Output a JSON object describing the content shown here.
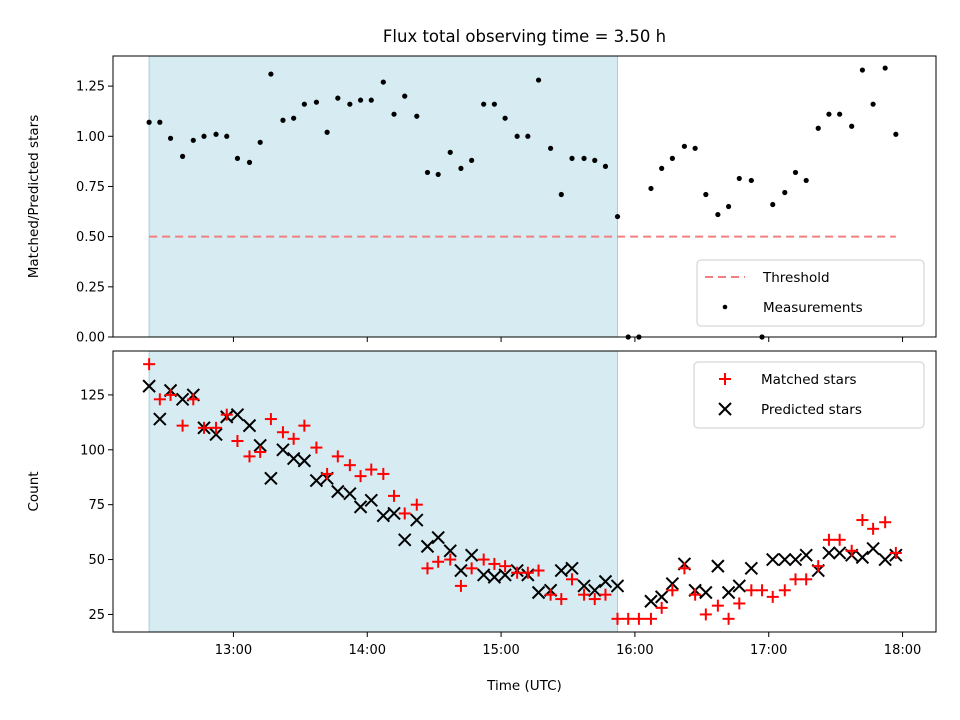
{
  "chart_data": [
    {
      "type": "scatter",
      "title": "Flux total observing time = 3.50 h",
      "xlabel": "",
      "ylabel": "Matched/Predicted stars",
      "xlim": [
        12.1,
        18.25
      ],
      "ylim": [
        0.0,
        1.4
      ],
      "yticks": [
        0.0,
        0.25,
        0.5,
        0.75,
        1.0,
        1.25
      ],
      "ytick_labels": [
        "0.00",
        "0.25",
        "0.50",
        "0.75",
        "1.00",
        "1.25"
      ],
      "xticks": [
        13,
        14,
        15,
        16,
        17,
        18
      ],
      "show_xtick_labels": false,
      "shaded_region": {
        "x": [
          12.37,
          15.87
        ],
        "color": "#add8e6"
      },
      "threshold": {
        "name": "Threshold",
        "value": 0.5,
        "x": [
          12.37,
          17.95
        ],
        "color": "#f08080",
        "style": "dashed"
      },
      "legend_position": "lower right",
      "series": [
        {
          "name": "Measurements",
          "color": "#000000",
          "marker": "dot",
          "points": [
            [
              12.37,
              1.07
            ],
            [
              12.45,
              1.07
            ],
            [
              12.53,
              0.99
            ],
            [
              12.62,
              0.9
            ],
            [
              12.7,
              0.98
            ],
            [
              12.78,
              1.0
            ],
            [
              12.87,
              1.01
            ],
            [
              12.95,
              1.0
            ],
            [
              13.03,
              0.89
            ],
            [
              13.12,
              0.87
            ],
            [
              13.2,
              0.97
            ],
            [
              13.28,
              1.31
            ],
            [
              13.37,
              1.08
            ],
            [
              13.45,
              1.09
            ],
            [
              13.53,
              1.16
            ],
            [
              13.62,
              1.17
            ],
            [
              13.7,
              1.02
            ],
            [
              13.78,
              1.19
            ],
            [
              13.87,
              1.16
            ],
            [
              13.95,
              1.18
            ],
            [
              14.03,
              1.18
            ],
            [
              14.12,
              1.27
            ],
            [
              14.2,
              1.11
            ],
            [
              14.28,
              1.2
            ],
            [
              14.37,
              1.1
            ],
            [
              14.45,
              0.82
            ],
            [
              14.53,
              0.81
            ],
            [
              14.62,
              0.92
            ],
            [
              14.7,
              0.84
            ],
            [
              14.78,
              0.88
            ],
            [
              14.87,
              1.16
            ],
            [
              14.95,
              1.16
            ],
            [
              15.03,
              1.09
            ],
            [
              15.12,
              1.0
            ],
            [
              15.2,
              1.0
            ],
            [
              15.28,
              1.28
            ],
            [
              15.37,
              0.94
            ],
            [
              15.45,
              0.71
            ],
            [
              15.53,
              0.89
            ],
            [
              15.62,
              0.89
            ],
            [
              15.7,
              0.88
            ],
            [
              15.78,
              0.85
            ],
            [
              15.87,
              0.6
            ],
            [
              15.95,
              0.0
            ],
            [
              16.03,
              0.0
            ],
            [
              16.12,
              0.74
            ],
            [
              16.2,
              0.84
            ],
            [
              16.28,
              0.89
            ],
            [
              16.37,
              0.95
            ],
            [
              16.45,
              0.94
            ],
            [
              16.53,
              0.71
            ],
            [
              16.62,
              0.61
            ],
            [
              16.7,
              0.65
            ],
            [
              16.78,
              0.79
            ],
            [
              16.87,
              0.78
            ],
            [
              16.95,
              0.0
            ],
            [
              17.03,
              0.66
            ],
            [
              17.12,
              0.72
            ],
            [
              17.2,
              0.82
            ],
            [
              17.28,
              0.78
            ],
            [
              17.37,
              1.04
            ],
            [
              17.45,
              1.11
            ],
            [
              17.53,
              1.11
            ],
            [
              17.62,
              1.05
            ],
            [
              17.7,
              1.33
            ],
            [
              17.78,
              1.16
            ],
            [
              17.87,
              1.34
            ],
            [
              17.95,
              1.01
            ]
          ]
        }
      ]
    },
    {
      "type": "scatter",
      "title": "",
      "xlabel": "Time (UTC)",
      "ylabel": "Count",
      "xlim": [
        12.1,
        18.25
      ],
      "ylim": [
        17,
        145
      ],
      "yticks": [
        25,
        50,
        75,
        100,
        125
      ],
      "ytick_labels": [
        "25",
        "50",
        "75",
        "100",
        "125"
      ],
      "xticks": [
        13,
        14,
        15,
        16,
        17,
        18
      ],
      "xtick_labels": [
        "13:00",
        "14:00",
        "15:00",
        "16:00",
        "17:00",
        "18:00"
      ],
      "shaded_region": {
        "x": [
          12.37,
          15.87
        ],
        "color": "#add8e6"
      },
      "legend_position": "upper right",
      "series": [
        {
          "name": "Matched stars",
          "color": "#ff0000",
          "marker": "plus",
          "points": [
            [
              12.37,
              139
            ],
            [
              12.45,
              123
            ],
            [
              12.53,
              125
            ],
            [
              12.62,
              111
            ],
            [
              12.7,
              123
            ],
            [
              12.78,
              110
            ],
            [
              12.87,
              110
            ],
            [
              12.95,
              116
            ],
            [
              13.03,
              104
            ],
            [
              13.12,
              97
            ],
            [
              13.2,
              99
            ],
            [
              13.28,
              114
            ],
            [
              13.37,
              108
            ],
            [
              13.45,
              105
            ],
            [
              13.53,
              111
            ],
            [
              13.62,
              101
            ],
            [
              13.7,
              89
            ],
            [
              13.78,
              97
            ],
            [
              13.87,
              93
            ],
            [
              13.95,
              88
            ],
            [
              14.03,
              91
            ],
            [
              14.12,
              89
            ],
            [
              14.2,
              79
            ],
            [
              14.28,
              71
            ],
            [
              14.37,
              75
            ],
            [
              14.45,
              46
            ],
            [
              14.53,
              49
            ],
            [
              14.62,
              50
            ],
            [
              14.7,
              38
            ],
            [
              14.78,
              46
            ],
            [
              14.87,
              50
            ],
            [
              14.95,
              48
            ],
            [
              15.03,
              47
            ],
            [
              15.12,
              44
            ],
            [
              15.2,
              44
            ],
            [
              15.28,
              45
            ],
            [
              15.37,
              34
            ],
            [
              15.45,
              32
            ],
            [
              15.53,
              41
            ],
            [
              15.62,
              34
            ],
            [
              15.7,
              32
            ],
            [
              15.78,
              34
            ],
            [
              15.87,
              23
            ],
            [
              15.95,
              23
            ],
            [
              16.03,
              23
            ],
            [
              16.12,
              23
            ],
            [
              16.2,
              28
            ],
            [
              16.28,
              36
            ],
            [
              16.37,
              46
            ],
            [
              16.45,
              34
            ],
            [
              16.53,
              25
            ],
            [
              16.62,
              29
            ],
            [
              16.7,
              23
            ],
            [
              16.78,
              30
            ],
            [
              16.87,
              36
            ],
            [
              16.95,
              36
            ],
            [
              17.03,
              33
            ],
            [
              17.12,
              36
            ],
            [
              17.2,
              41
            ],
            [
              17.28,
              41
            ],
            [
              17.37,
              47
            ],
            [
              17.45,
              59
            ],
            [
              17.53,
              59
            ],
            [
              17.62,
              54
            ],
            [
              17.7,
              68
            ],
            [
              17.78,
              64
            ],
            [
              17.87,
              67
            ],
            [
              17.95,
              53
            ]
          ]
        },
        {
          "name": "Predicted stars",
          "color": "#000000",
          "marker": "x",
          "points": [
            [
              12.37,
              129
            ],
            [
              12.45,
              114
            ],
            [
              12.53,
              127
            ],
            [
              12.62,
              123
            ],
            [
              12.7,
              125
            ],
            [
              12.78,
              110
            ],
            [
              12.87,
              107
            ],
            [
              12.95,
              115
            ],
            [
              13.03,
              116
            ],
            [
              13.12,
              111
            ],
            [
              13.2,
              102
            ],
            [
              13.28,
              87
            ],
            [
              13.37,
              100
            ],
            [
              13.45,
              96
            ],
            [
              13.53,
              95
            ],
            [
              13.62,
              86
            ],
            [
              13.7,
              87
            ],
            [
              13.78,
              81
            ],
            [
              13.87,
              80
            ],
            [
              13.95,
              74
            ],
            [
              14.03,
              77
            ],
            [
              14.12,
              70
            ],
            [
              14.2,
              71
            ],
            [
              14.28,
              59
            ],
            [
              14.37,
              68
            ],
            [
              14.45,
              56
            ],
            [
              14.53,
              60
            ],
            [
              14.62,
              54
            ],
            [
              14.7,
              45
            ],
            [
              14.78,
              52
            ],
            [
              14.87,
              43
            ],
            [
              14.95,
              42
            ],
            [
              15.03,
              43
            ],
            [
              15.12,
              45
            ],
            [
              15.2,
              43
            ],
            [
              15.28,
              35
            ],
            [
              15.37,
              36
            ],
            [
              15.45,
              45
            ],
            [
              15.53,
              46
            ],
            [
              15.62,
              38
            ],
            [
              15.7,
              36
            ],
            [
              15.78,
              40
            ],
            [
              15.87,
              38
            ],
            [
              16.12,
              31
            ],
            [
              16.2,
              33
            ],
            [
              16.28,
              39
            ],
            [
              16.37,
              48
            ],
            [
              16.45,
              36
            ],
            [
              16.53,
              35
            ],
            [
              16.62,
              47
            ],
            [
              16.7,
              35
            ],
            [
              16.78,
              38
            ],
            [
              16.87,
              46
            ],
            [
              17.03,
              50
            ],
            [
              17.12,
              50
            ],
            [
              17.2,
              50
            ],
            [
              17.28,
              52
            ],
            [
              17.37,
              45
            ],
            [
              17.45,
              53
            ],
            [
              17.53,
              53
            ],
            [
              17.62,
              52
            ],
            [
              17.7,
              51
            ],
            [
              17.78,
              55
            ],
            [
              17.87,
              50
            ],
            [
              17.95,
              52
            ]
          ]
        }
      ]
    }
  ]
}
